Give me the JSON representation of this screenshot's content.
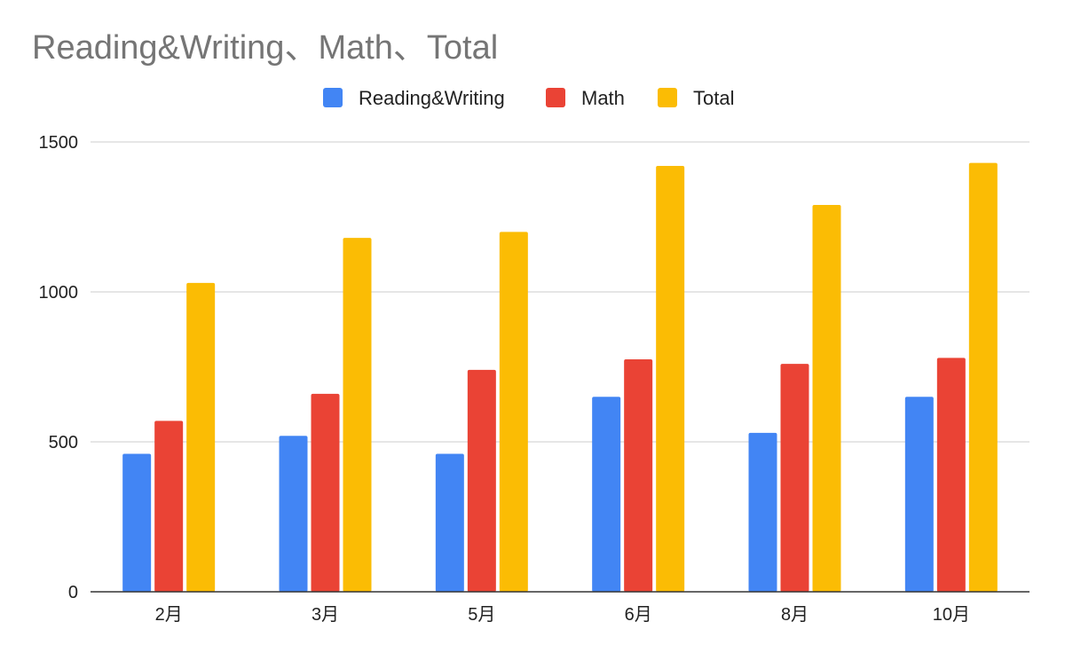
{
  "chart_data": {
    "type": "bar",
    "title": "Reading&Writing、Math、Total",
    "xlabel": "",
    "ylabel": "",
    "categories": [
      "2月",
      "3月",
      "5月",
      "6月",
      "8月",
      "10月"
    ],
    "series": [
      {
        "name": "Reading&Writing",
        "color": "#4285f4",
        "values": [
          460,
          520,
          460,
          650,
          530,
          650
        ]
      },
      {
        "name": "Math",
        "color": "#ea4335",
        "values": [
          570,
          660,
          740,
          775,
          760,
          780
        ]
      },
      {
        "name": "Total",
        "color": "#fbbc04",
        "values": [
          1030,
          1180,
          1200,
          1420,
          1290,
          1430
        ]
      }
    ],
    "ylim": [
      0,
      1500
    ],
    "yticks": [
      0,
      500,
      1000,
      1500
    ],
    "grid": true,
    "legend": "top-center"
  }
}
